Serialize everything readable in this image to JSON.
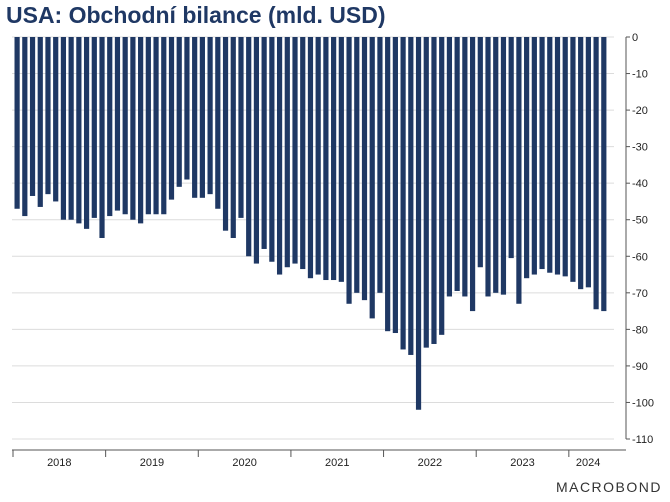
{
  "chart_data": {
    "type": "bar",
    "title": "USA: Obchodní bilance (mld. USD)",
    "color": "#1f3864",
    "xlabel": "",
    "ylabel": "",
    "ylim": [
      -110,
      0
    ],
    "yticks": [
      0,
      -10,
      -20,
      -30,
      -40,
      -50,
      -60,
      -70,
      -80,
      -90,
      -100,
      -110
    ],
    "grid": true,
    "legend": "none",
    "x_tick_labels": [
      "2018",
      "2019",
      "2020",
      "2021",
      "2022",
      "2023",
      "2024"
    ],
    "categories": [
      "2018-01",
      "2018-02",
      "2018-03",
      "2018-04",
      "2018-05",
      "2018-06",
      "2018-07",
      "2018-08",
      "2018-09",
      "2018-10",
      "2018-11",
      "2018-12",
      "2019-01",
      "2019-02",
      "2019-03",
      "2019-04",
      "2019-05",
      "2019-06",
      "2019-07",
      "2019-08",
      "2019-09",
      "2019-10",
      "2019-11",
      "2019-12",
      "2020-01",
      "2020-02",
      "2020-03",
      "2020-04",
      "2020-05",
      "2020-06",
      "2020-07",
      "2020-08",
      "2020-09",
      "2020-10",
      "2020-11",
      "2020-12",
      "2021-01",
      "2021-02",
      "2021-03",
      "2021-04",
      "2021-05",
      "2021-06",
      "2021-07",
      "2021-08",
      "2021-09",
      "2021-10",
      "2021-11",
      "2021-12",
      "2022-01",
      "2022-02",
      "2022-03",
      "2022-04",
      "2022-05",
      "2022-06",
      "2022-07",
      "2022-08",
      "2022-09",
      "2022-10",
      "2022-11",
      "2022-12",
      "2023-01",
      "2023-02",
      "2023-03",
      "2023-04",
      "2023-05",
      "2023-06",
      "2023-07",
      "2023-08",
      "2023-09",
      "2023-10",
      "2023-11",
      "2023-12",
      "2024-01",
      "2024-02",
      "2024-03",
      "2024-04",
      "2024-05"
    ],
    "values": [
      -47,
      -49,
      -43.5,
      -46.5,
      -43,
      -45,
      -50,
      -50,
      -51,
      -52.5,
      -49.5,
      -55,
      -49,
      -47.5,
      -48.5,
      -50,
      -51,
      -48.5,
      -48.5,
      -48.5,
      -44.5,
      -41,
      -39,
      -44,
      -44,
      -43,
      -47,
      -53,
      -55,
      -49.5,
      -60,
      -62,
      -58,
      -61.5,
      -65,
      -63,
      -62,
      -63.5,
      -66,
      -65,
      -66.5,
      -66.5,
      -67,
      -73,
      -70,
      -72,
      -77,
      -70,
      -80.5,
      -81,
      -85.5,
      -87,
      -102,
      -85,
      -84,
      -81.5,
      -71,
      -69.5,
      -71,
      -75,
      -63,
      -71,
      -70,
      -70.5,
      -60.5,
      -73,
      -66,
      -65,
      -63.5,
      -64.5,
      -65,
      -65.5,
      -67,
      -69,
      -68.5,
      -74.5,
      -75
    ]
  },
  "branding": {
    "logo_text": "MACROBOND"
  }
}
